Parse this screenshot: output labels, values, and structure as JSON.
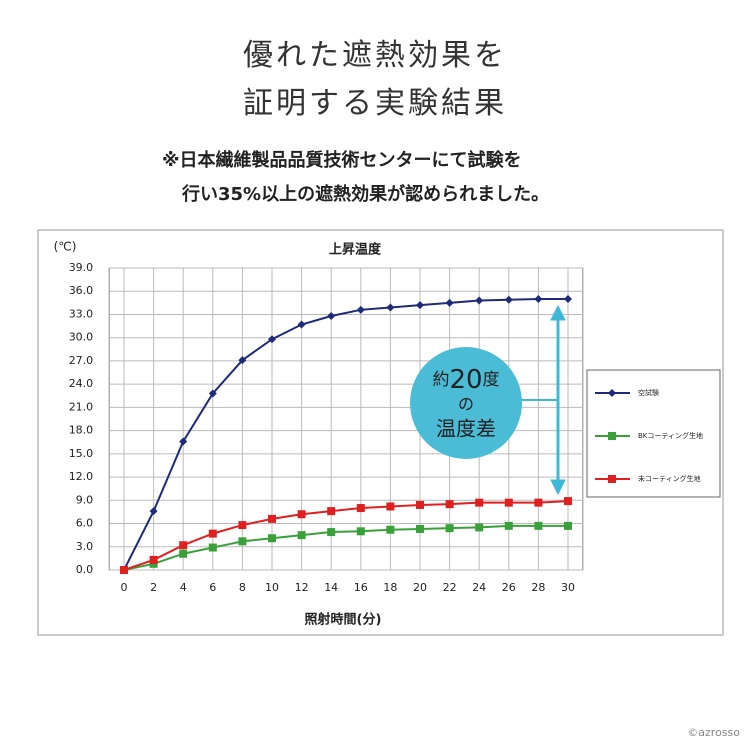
{
  "heading": [
    "優れた遮熱効果を",
    "証明する実験結果"
  ],
  "note": [
    "※日本繊維製品品質技術センターにて試験を",
    "行い35%以上の遮熱効果が認められました。"
  ],
  "credit": "©azrosso",
  "chart_data": {
    "type": "line",
    "title": "上昇温度",
    "y_label": "(℃)",
    "x_label": "照射時間(分)",
    "x": [
      0,
      2,
      4,
      6,
      8,
      10,
      12,
      14,
      16,
      18,
      20,
      22,
      24,
      26,
      28,
      30
    ],
    "series": [
      {
        "name": "空試験",
        "color": "#1f2a7a",
        "marker": "diamond",
        "values": [
          0,
          7.6,
          16.6,
          22.8,
          27.1,
          29.8,
          31.7,
          32.8,
          33.6,
          33.9,
          34.2,
          34.5,
          34.8,
          34.9,
          35.0,
          35.0
        ]
      },
      {
        "name": "BKコーティング生地",
        "color": "#3aa03a",
        "marker": "square",
        "values": [
          0,
          0.8,
          2.1,
          2.9,
          3.7,
          4.1,
          4.5,
          4.9,
          5.0,
          5.2,
          5.3,
          5.4,
          5.5,
          5.7,
          5.7,
          5.7
        ]
      },
      {
        "name": "未コーティング生地",
        "color": "#e02020",
        "marker": "square",
        "values": [
          0,
          1.3,
          3.2,
          4.7,
          5.8,
          6.6,
          7.2,
          7.6,
          8.0,
          8.2,
          8.4,
          8.5,
          8.7,
          8.7,
          8.7,
          8.9
        ]
      }
    ],
    "xlim": [
      -1,
      31
    ],
    "xticks": [
      0,
      2,
      4,
      6,
      8,
      10,
      12,
      14,
      16,
      18,
      20,
      22,
      24,
      26,
      28,
      30
    ],
    "ylim": [
      0,
      39
    ],
    "yticks": [
      {
        "value": 0,
        "label": "0.0"
      },
      {
        "value": 3,
        "label": "3.0"
      },
      {
        "value": 6,
        "label": "6.0"
      },
      {
        "value": 9,
        "label": "9.0"
      },
      {
        "value": 12,
        "label": "12.0"
      },
      {
        "value": 15,
        "label": "15.0"
      },
      {
        "value": 18,
        "label": "18.0"
      },
      {
        "value": 21,
        "label": "21.0"
      },
      {
        "value": 24,
        "label": "24.0"
      },
      {
        "value": 27,
        "label": "27.0"
      },
      {
        "value": 30,
        "label": "30.0"
      },
      {
        "value": 33,
        "label": "33.0"
      },
      {
        "value": 36,
        "label": "36.0"
      },
      {
        "value": 39,
        "label": "39.0"
      }
    ],
    "grid": true,
    "annotation": {
      "parts": [
        "約",
        "20",
        "度"
      ],
      "lines": [
        "の",
        "温度差"
      ]
    }
  }
}
